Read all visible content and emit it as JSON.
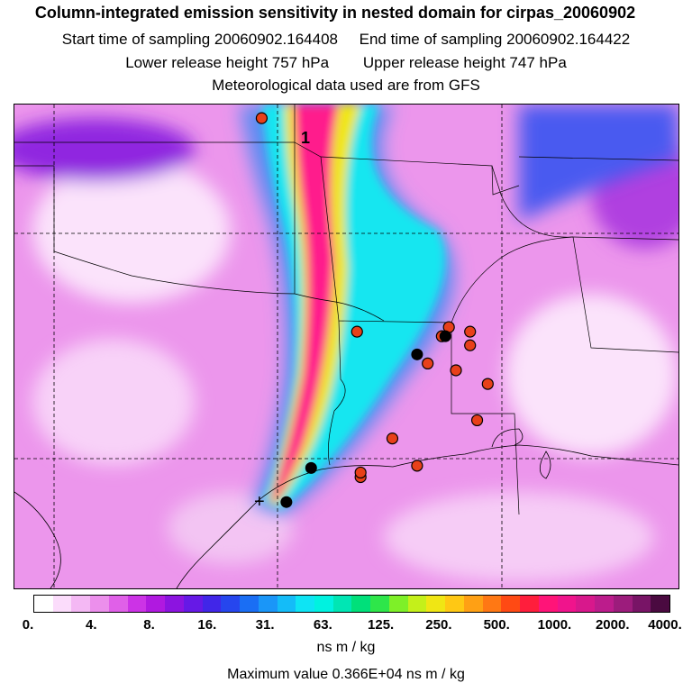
{
  "header": {
    "title": "Column-integrated emission sensitivity in nested domain for cirpas_20060902",
    "start_time": "Start time of sampling 20060902.164408",
    "end_time": "End time of sampling 20060902.164422",
    "lower_height": "Lower release height  757 hPa",
    "upper_height": "Upper release height  747 hPa",
    "met_data": "Meteorological data used are from GFS"
  },
  "map": {
    "plume_label": "1",
    "release_marker": "+",
    "colors": {
      "background": "#ee99ee",
      "low": "#fbe3fb",
      "plume_edge": "#00e6f0",
      "plume_core": "#ff1a8c"
    }
  },
  "colorbar": {
    "tick_labels": [
      "0.",
      "4.",
      "8.",
      "16.",
      "31.",
      "63.",
      "125.",
      "250.",
      "500.",
      "1000.",
      "2000.",
      "4000."
    ],
    "colors": [
      "#ffffff",
      "#fbdcfb",
      "#f4b8f4",
      "#ec8fec",
      "#e060e8",
      "#cc33e6",
      "#b019e0",
      "#8c14e0",
      "#6619e6",
      "#4126e8",
      "#2646ee",
      "#1a6ef4",
      "#1a96f8",
      "#14bcf8",
      "#0ee4f4",
      "#00f2e0",
      "#00e6b4",
      "#00e07a",
      "#2ee64a",
      "#7ef028",
      "#c4f01a",
      "#f0e614",
      "#ffc814",
      "#ffa014",
      "#ff7814",
      "#ff4a14",
      "#ff1e3c",
      "#ff1478",
      "#f0148c",
      "#d8188c",
      "#bc1c8c",
      "#9c1c7c",
      "#781466",
      "#4a0a40"
    ],
    "units": "ns m / kg",
    "max_value": "Maximum value  0.366E+04 ns m / kg"
  },
  "sites": {
    "red": [
      [
        97.8,
        44.3
      ],
      [
        95.1,
        34.9
      ],
      [
        92.7,
        34.7
      ],
      [
        92.5,
        35.1
      ],
      [
        91.9,
        34.3
      ],
      [
        91.9,
        34.9
      ],
      [
        94.1,
        30.2
      ],
      [
        92.3,
        33.2
      ],
      [
        91.4,
        32.6
      ],
      [
        91.7,
        31.0
      ],
      [
        95.0,
        28.5
      ],
      [
        95.0,
        28.7
      ],
      [
        93.4,
        29.0
      ],
      [
        93.1,
        33.5
      ]
    ],
    "black": [
      [
        96.4,
        28.9
      ],
      [
        92.6,
        34.7
      ],
      [
        93.4,
        33.9
      ],
      [
        97.1,
        27.4
      ]
    ]
  }
}
